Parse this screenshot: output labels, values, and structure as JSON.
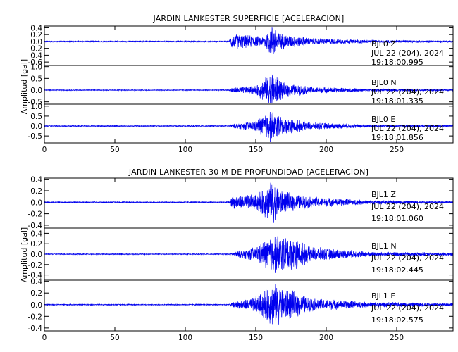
{
  "chart_data": [
    {
      "type": "line",
      "title": "JARDIN LANKESTER SUPERFICIE [ACELERACION]",
      "ylabel": "Amplitud [gal]",
      "xlabel": "",
      "xlim": [
        0,
        290
      ],
      "x_ticks": [
        "0",
        "50",
        "100",
        "150",
        "200",
        "250"
      ],
      "grid": false,
      "legend": "none",
      "color": "#0000ee",
      "panels": [
        {
          "channel": "BJL0 Z",
          "date": "JUL 22 (204), 2024",
          "time": "19:18:00.995",
          "ylim": [
            -0.7,
            0.45
          ],
          "y_ticks": [
            0.4,
            0.2,
            0.0,
            -0.2,
            -0.4,
            -0.6
          ],
          "y_tick_labels": [
            "0.4",
            "0.2",
            "0.0",
            "-0.2",
            "-0.4",
            "-0.6"
          ],
          "envelope": [
            {
              "x": 0,
              "amp": 0.02
            },
            {
              "x": 131,
              "amp": 0.02
            },
            {
              "x": 133,
              "amp": 0.25
            },
            {
              "x": 145,
              "amp": 0.2
            },
            {
              "x": 155,
              "amp": 0.15
            },
            {
              "x": 162,
              "amp": 0.55
            },
            {
              "x": 168,
              "amp": 0.25
            },
            {
              "x": 190,
              "amp": 0.1
            },
            {
              "x": 230,
              "amp": 0.05
            },
            {
              "x": 290,
              "amp": 0.03
            }
          ]
        },
        {
          "channel": "BJL0 N",
          "date": "JUL 22 (204), 2024",
          "time": "19:18:01.335",
          "ylim": [
            -0.6,
            1.05
          ],
          "y_ticks": [
            1.0,
            0.5,
            0.0,
            -0.5
          ],
          "y_tick_labels": [
            "1.0",
            "0.5",
            "0.0",
            "-0.5"
          ],
          "envelope": [
            {
              "x": 0,
              "amp": 0.02
            },
            {
              "x": 131,
              "amp": 0.02
            },
            {
              "x": 133,
              "amp": 0.12
            },
            {
              "x": 150,
              "amp": 0.2
            },
            {
              "x": 162,
              "amp": 0.9
            },
            {
              "x": 170,
              "amp": 0.35
            },
            {
              "x": 190,
              "amp": 0.15
            },
            {
              "x": 230,
              "amp": 0.07
            },
            {
              "x": 290,
              "amp": 0.04
            }
          ]
        },
        {
          "channel": "BJL0 E",
          "date": "JUL 22 (204), 2024",
          "time": "19:18:01.856",
          "ylim": [
            -0.85,
            1.1
          ],
          "y_ticks": [
            1.0,
            0.5,
            0.0,
            -0.5
          ],
          "y_tick_labels": [
            "1.0",
            "0.5",
            "0.0",
            "-0.5"
          ],
          "envelope": [
            {
              "x": 0,
              "amp": 0.03
            },
            {
              "x": 131,
              "amp": 0.03
            },
            {
              "x": 133,
              "amp": 0.1
            },
            {
              "x": 150,
              "amp": 0.3
            },
            {
              "x": 160,
              "amp": 0.9
            },
            {
              "x": 170,
              "amp": 0.45
            },
            {
              "x": 190,
              "amp": 0.2
            },
            {
              "x": 230,
              "amp": 0.08
            },
            {
              "x": 290,
              "amp": 0.05
            }
          ]
        }
      ]
    },
    {
      "type": "line",
      "title": "JARDIN LANKESTER 30 M DE PROFUNDIDAD [ACELERACION]",
      "ylabel": "Amplitud [gal]",
      "xlabel": "",
      "xlim": [
        0,
        290
      ],
      "x_ticks": [
        "0",
        "50",
        "100",
        "150",
        "200",
        "250"
      ],
      "grid": false,
      "legend": "none",
      "color": "#0000ee",
      "panels": [
        {
          "channel": "BJL1 Z",
          "date": "JUL 22 (204), 2024",
          "time": "19:18:01.060",
          "ylim": [
            -0.45,
            0.42
          ],
          "y_ticks": [
            0.4,
            0.2,
            0.0,
            -0.2,
            -0.4
          ],
          "y_tick_labels": [
            "0.4",
            "0.2",
            "0.0",
            "-0.2",
            "-0.4"
          ],
          "envelope": [
            {
              "x": 0,
              "amp": 0.01
            },
            {
              "x": 131,
              "amp": 0.01
            },
            {
              "x": 133,
              "amp": 0.12
            },
            {
              "x": 150,
              "amp": 0.15
            },
            {
              "x": 162,
              "amp": 0.4
            },
            {
              "x": 170,
              "amp": 0.2
            },
            {
              "x": 190,
              "amp": 0.1
            },
            {
              "x": 230,
              "amp": 0.04
            },
            {
              "x": 290,
              "amp": 0.02
            }
          ]
        },
        {
          "channel": "BJL1 N",
          "date": "JUL 22 (204), 2024",
          "time": "19:18:02.445",
          "ylim": [
            -0.5,
            0.5
          ],
          "y_ticks": [
            0.4,
            0.2,
            0.0,
            -0.2,
            -0.4
          ],
          "y_tick_labels": [
            "0.4",
            "0.2",
            "0.0",
            "-0.2",
            "-0.4"
          ],
          "envelope": [
            {
              "x": 0,
              "amp": 0.01
            },
            {
              "x": 131,
              "amp": 0.01
            },
            {
              "x": 133,
              "amp": 0.04
            },
            {
              "x": 150,
              "amp": 0.15
            },
            {
              "x": 162,
              "amp": 0.42
            },
            {
              "x": 175,
              "amp": 0.35
            },
            {
              "x": 190,
              "amp": 0.15
            },
            {
              "x": 230,
              "amp": 0.05
            },
            {
              "x": 290,
              "amp": 0.03
            }
          ]
        },
        {
          "channel": "BJL1 E",
          "date": "JUL 22 (204), 2024",
          "time": "19:18:02.575",
          "ylim": [
            -0.45,
            0.42
          ],
          "y_ticks": [
            0.4,
            0.2,
            0.0,
            -0.2,
            -0.4
          ],
          "y_tick_labels": [
            "0.4",
            "0.2",
            "0.0",
            "-0.2",
            "-0.4"
          ],
          "envelope": [
            {
              "x": 0,
              "amp": 0.01
            },
            {
              "x": 131,
              "amp": 0.01
            },
            {
              "x": 133,
              "amp": 0.04
            },
            {
              "x": 150,
              "amp": 0.15
            },
            {
              "x": 162,
              "amp": 0.4
            },
            {
              "x": 172,
              "amp": 0.3
            },
            {
              "x": 190,
              "amp": 0.12
            },
            {
              "x": 230,
              "amp": 0.05
            },
            {
              "x": 290,
              "amp": 0.03
            }
          ]
        }
      ]
    }
  ]
}
